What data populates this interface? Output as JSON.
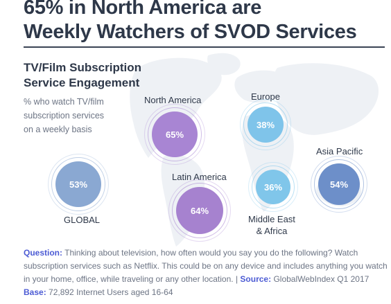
{
  "title": {
    "line1": "65% in North America are",
    "line2": "Weekly Watchers of SVOD Services"
  },
  "subtitle": {
    "line1": "TV/Film Subscription",
    "line2": "Service Engagement"
  },
  "description": {
    "line1": "% who watch TV/film",
    "line2": "subscription services",
    "line3": "on a weekly basis"
  },
  "chart_data": {
    "type": "bubble",
    "title": "TV/Film Subscription Service Engagement",
    "subtitle": "% who watch TV/film subscription services on a weekly basis",
    "unit": "%",
    "categories": [
      "GLOBAL",
      "North America",
      "Latin America",
      "Europe",
      "Middle East & Africa",
      "Asia Pacific"
    ],
    "values": [
      53,
      65,
      64,
      38,
      36,
      54
    ],
    "labels": [
      "53%",
      "65%",
      "64%",
      "38%",
      "36%",
      "54%"
    ],
    "colors": [
      "#8aa8d2",
      "#a885d3",
      "#a682cf",
      "#7fc4ea",
      "#80c6ea",
      "#6d8fc9"
    ]
  },
  "regions": {
    "global": {
      "label": "GLOBAL"
    },
    "north_america": {
      "label": "North America"
    },
    "latin_america": {
      "label": "Latin America"
    },
    "europe": {
      "label": "Europe"
    },
    "mea": {
      "line1": "Middle East",
      "line2": "& Africa"
    },
    "asia_pacific": {
      "label": "Asia Pacific"
    }
  },
  "footer": {
    "question_label": "Question:",
    "question_line1": "Thinking about television, how often would you say you do the following? Watch",
    "question_line2": "subscription services such as Netflix. This could be on any device and includes anything you watch",
    "question_line3": "in your home, office, while traveling or any other location.",
    "separator": "|",
    "source_label": "Source:",
    "source_value": "GlobalWebIndex Q1 2017",
    "base_label": "Base:",
    "base_value": "72,892 Internet Users aged 16-64"
  },
  "colors": {
    "title": "#2e3849",
    "accent": "#4c5bd4",
    "muted": "#6c7484",
    "map": "#eef1f6"
  }
}
